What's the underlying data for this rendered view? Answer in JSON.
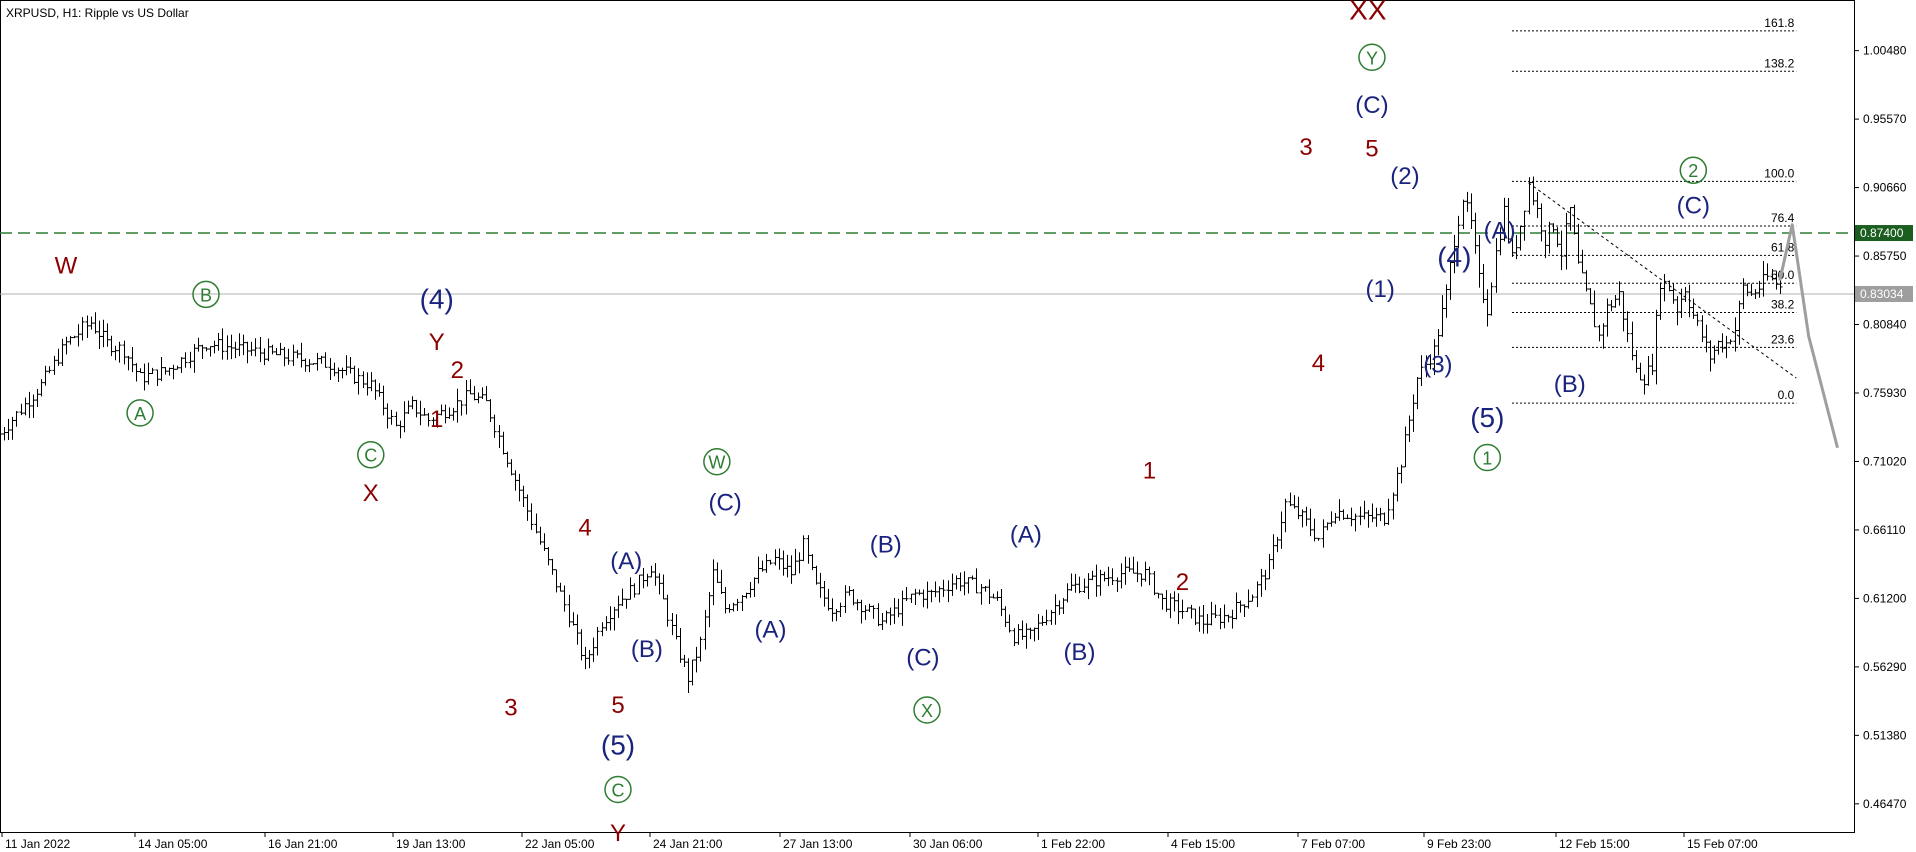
{
  "header": {
    "title": "XRPUSD, H1:  Ripple vs US Dollar"
  },
  "colors": {
    "background": "#ffffff",
    "bars": "#000000",
    "grid_frame": "#000000",
    "wave_dark_red": "#8b0000",
    "wave_navy": "#1a237e",
    "wave_green": "#2e7d32",
    "level_line": "#2e7d32",
    "price_badge": "#1b5e20",
    "current_badge": "#9e9e9e",
    "forecast": "#9e9e9e"
  },
  "chart_data": {
    "type": "candlestick",
    "symbol": "XRPUSD",
    "timeframe": "H1",
    "title": "XRPUSD, H1:  Ripple vs US Dollar",
    "ylim": [
      0.4445,
      1.0411
    ],
    "y_ticks": [
      "1.00480",
      "0.95570",
      "0.90660",
      "0.85750",
      "0.80840",
      "0.75930",
      "0.71020",
      "0.66110",
      "0.61200",
      "0.56290",
      "0.51380",
      "0.46470"
    ],
    "x_ticks": [
      "11 Jan 2022",
      "14 Jan 05:00",
      "16 Jan 21:00",
      "19 Jan 13:00",
      "22 Jan 05:00",
      "24 Jan 21:00",
      "27 Jan 13:00",
      "30 Jan 06:00",
      "1 Feb 22:00",
      "4 Feb 15:00",
      "7 Feb 07:00",
      "9 Feb 23:00",
      "12 Feb 15:00",
      "15 Feb 07:00"
    ],
    "price_path": [
      [
        0,
        0.73
      ],
      [
        5,
        0.765
      ],
      [
        8,
        0.795
      ],
      [
        11,
        0.81
      ],
      [
        13,
        0.795
      ],
      [
        15,
        0.79
      ],
      [
        17,
        0.77
      ],
      [
        20,
        0.775
      ],
      [
        25,
        0.795
      ],
      [
        30,
        0.79
      ],
      [
        35,
        0.785
      ],
      [
        40,
        0.78
      ],
      [
        45,
        0.765
      ],
      [
        48,
        0.735
      ],
      [
        50,
        0.75
      ],
      [
        52,
        0.74
      ],
      [
        55,
        0.75
      ],
      [
        57,
        0.758
      ],
      [
        59,
        0.752
      ],
      [
        61,
        0.72
      ],
      [
        63,
        0.69
      ],
      [
        65,
        0.66
      ],
      [
        67,
        0.63
      ],
      [
        69,
        0.6
      ],
      [
        71,
        0.565
      ],
      [
        73,
        0.595
      ],
      [
        75,
        0.61
      ],
      [
        77,
        0.62
      ],
      [
        79,
        0.635
      ],
      [
        80.5,
        0.61
      ],
      [
        82,
        0.58
      ],
      [
        83.5,
        0.555
      ],
      [
        85,
        0.58
      ],
      [
        86.5,
        0.63
      ],
      [
        88,
        0.605
      ],
      [
        90,
        0.615
      ],
      [
        92,
        0.63
      ],
      [
        94,
        0.64
      ],
      [
        96,
        0.63
      ],
      [
        97.5,
        0.65
      ],
      [
        99,
        0.62
      ],
      [
        101,
        0.605
      ],
      [
        103,
        0.615
      ],
      [
        105,
        0.605
      ],
      [
        107,
        0.595
      ],
      [
        109,
        0.605
      ],
      [
        111,
        0.615
      ],
      [
        113,
        0.615
      ],
      [
        116,
        0.625
      ],
      [
        119,
        0.62
      ],
      [
        121,
        0.61
      ],
      [
        123,
        0.585
      ],
      [
        125,
        0.585
      ],
      [
        127,
        0.6
      ],
      [
        130,
        0.62
      ],
      [
        133,
        0.625
      ],
      [
        136,
        0.63
      ],
      [
        139,
        0.63
      ],
      [
        141,
        0.61
      ],
      [
        143,
        0.605
      ],
      [
        146,
        0.595
      ],
      [
        149,
        0.6
      ],
      [
        152,
        0.615
      ],
      [
        154,
        0.635
      ],
      [
        156,
        0.68
      ],
      [
        158,
        0.67
      ],
      [
        160,
        0.655
      ],
      [
        162,
        0.675
      ],
      [
        165,
        0.67
      ],
      [
        168,
        0.67
      ],
      [
        170,
        0.71
      ],
      [
        172,
        0.77
      ],
      [
        174,
        0.79
      ],
      [
        175.5,
        0.83
      ],
      [
        176.5,
        0.87
      ],
      [
        177.5,
        0.9
      ],
      [
        178.5,
        0.88
      ],
      [
        179.5,
        0.84
      ],
      [
        180.5,
        0.82
      ],
      [
        181.5,
        0.86
      ],
      [
        182.5,
        0.89
      ],
      [
        183.5,
        0.855
      ],
      [
        184.5,
        0.88
      ],
      [
        185.5,
        0.91
      ],
      [
        186.5,
        0.89
      ],
      [
        187.5,
        0.87
      ],
      [
        188.5,
        0.88
      ],
      [
        189.5,
        0.86
      ],
      [
        190.5,
        0.89
      ],
      [
        191.5,
        0.85
      ],
      [
        192.5,
        0.83
      ],
      [
        194,
        0.8
      ],
      [
        195,
        0.82
      ],
      [
        196.5,
        0.83
      ],
      [
        197.5,
        0.8
      ],
      [
        198.5,
        0.775
      ],
      [
        199.5,
        0.77
      ],
      [
        200.5,
        0.78
      ],
      [
        201.5,
        0.84
      ],
      [
        202.5,
        0.835
      ],
      [
        203.5,
        0.82
      ],
      [
        204.5,
        0.835
      ],
      [
        205.5,
        0.815
      ],
      [
        206.5,
        0.8
      ],
      [
        207.5,
        0.785
      ],
      [
        208.5,
        0.795
      ],
      [
        209.5,
        0.795
      ],
      [
        210.5,
        0.805
      ],
      [
        211.5,
        0.835
      ],
      [
        212.5,
        0.83
      ],
      [
        213.5,
        0.835
      ],
      [
        214.5,
        0.842
      ],
      [
        215.5,
        0.838
      ],
      [
        216,
        0.835
      ]
    ],
    "fibonacci": {
      "levels": [
        {
          "label": "161.8",
          "price": 1.019
        },
        {
          "label": "138.2",
          "price": 0.99
        },
        {
          "label": "100.0",
          "price": 0.911
        },
        {
          "label": "76.4",
          "price": 0.879
        },
        {
          "label": "61.8",
          "price": 0.858
        },
        {
          "label": "50.0",
          "price": 0.838
        },
        {
          "label": "38.2",
          "price": 0.817
        },
        {
          "label": "23.6",
          "price": 0.792
        },
        {
          "label": "0.0",
          "price": 0.752
        }
      ],
      "t_start": 183.5,
      "t_end": 218
    },
    "horizontal_levels": [
      {
        "label": "0.87400",
        "price": 0.874,
        "style": "dashed-green"
      },
      {
        "label": "0.83034",
        "price": 0.8303,
        "style": "solid-gray"
      }
    ],
    "trendline": [
      [
        185.5,
        0.91
      ],
      [
        218,
        0.77
      ]
    ],
    "forecast_path": [
      [
        216,
        0.84
      ],
      [
        217.5,
        0.88
      ],
      [
        219.5,
        0.8
      ],
      [
        223,
        0.72
      ]
    ],
    "wave_labels": [
      {
        "text": "W",
        "t": 8,
        "p": 0.845,
        "color": "red"
      },
      {
        "text": "A",
        "t": 17,
        "p": 0.74,
        "color": "green",
        "circle": true
      },
      {
        "text": "B",
        "t": 25,
        "p": 0.825,
        "color": "green",
        "circle": true
      },
      {
        "text": "(4)",
        "t": 53,
        "p": 0.82,
        "color": "navy"
      },
      {
        "text": "Y",
        "t": 53,
        "p": 0.79,
        "color": "red"
      },
      {
        "text": "2",
        "t": 55.5,
        "p": 0.77,
        "color": "red"
      },
      {
        "text": "1",
        "t": 53,
        "p": 0.735,
        "color": "red"
      },
      {
        "text": "C",
        "t": 45,
        "p": 0.71,
        "color": "green",
        "circle": true
      },
      {
        "text": "X",
        "t": 45,
        "p": 0.682,
        "color": "red"
      },
      {
        "text": "3",
        "t": 62,
        "p": 0.528,
        "color": "red"
      },
      {
        "text": "4",
        "t": 71,
        "p": 0.657,
        "color": "red"
      },
      {
        "text": "(A)",
        "t": 76,
        "p": 0.633,
        "color": "navy"
      },
      {
        "text": "(B)",
        "t": 78.5,
        "p": 0.57,
        "color": "navy"
      },
      {
        "text": "5",
        "t": 75,
        "p": 0.53,
        "color": "red"
      },
      {
        "text": "(5)",
        "t": 75,
        "p": 0.5,
        "color": "navy"
      },
      {
        "text": "C",
        "t": 75,
        "p": 0.47,
        "color": "green",
        "circle": true
      },
      {
        "text": "Y",
        "t": 75,
        "p": 0.438,
        "color": "red"
      },
      {
        "text": "W",
        "t": 87,
        "p": 0.705,
        "color": "green",
        "circle": true
      },
      {
        "text": "(C)",
        "t": 88,
        "p": 0.675,
        "color": "navy"
      },
      {
        "text": "(A)",
        "t": 93.5,
        "p": 0.584,
        "color": "navy"
      },
      {
        "text": "(B)",
        "t": 107.5,
        "p": 0.645,
        "color": "navy"
      },
      {
        "text": "(C)",
        "t": 112,
        "p": 0.564,
        "color": "navy"
      },
      {
        "text": "X",
        "t": 112.5,
        "p": 0.527,
        "color": "green",
        "circle": true
      },
      {
        "text": "(A)",
        "t": 124.5,
        "p": 0.652,
        "color": "navy"
      },
      {
        "text": "(B)",
        "t": 131,
        "p": 0.568,
        "color": "navy"
      },
      {
        "text": "1",
        "t": 139.5,
        "p": 0.698,
        "color": "red"
      },
      {
        "text": "2",
        "t": 143.5,
        "p": 0.618,
        "color": "red"
      },
      {
        "text": "3",
        "t": 158.5,
        "p": 0.93,
        "color": "red"
      },
      {
        "text": "4",
        "t": 160,
        "p": 0.775,
        "color": "red"
      },
      {
        "text": "XX",
        "t": 166,
        "p": 1.027,
        "color": "red"
      },
      {
        "text": "Y",
        "t": 166.5,
        "p": 0.995,
        "color": "green",
        "circle": true
      },
      {
        "text": "(C)",
        "t": 166.5,
        "p": 0.96,
        "color": "navy"
      },
      {
        "text": "5",
        "t": 166.5,
        "p": 0.929,
        "color": "red"
      },
      {
        "text": "(2)",
        "t": 170.5,
        "p": 0.909,
        "color": "navy"
      },
      {
        "text": "(1)",
        "t": 167.5,
        "p": 0.828,
        "color": "navy"
      },
      {
        "text": "(4)",
        "t": 176.5,
        "p": 0.85,
        "color": "navy"
      },
      {
        "text": "(3)",
        "t": 174.5,
        "p": 0.774,
        "color": "navy"
      },
      {
        "text": "(5)",
        "t": 180.5,
        "p": 0.735,
        "color": "navy"
      },
      {
        "text": "1",
        "t": 180.5,
        "p": 0.708,
        "color": "green",
        "circle": true
      },
      {
        "text": "(A)",
        "t": 182,
        "p": 0.87,
        "color": "navy"
      },
      {
        "text": "(B)",
        "t": 190.5,
        "p": 0.76,
        "color": "navy"
      },
      {
        "text": "(C)",
        "t": 205.5,
        "p": 0.888,
        "color": "navy"
      },
      {
        "text": "2",
        "t": 205.5,
        "p": 0.914,
        "color": "green",
        "circle": true
      }
    ]
  }
}
